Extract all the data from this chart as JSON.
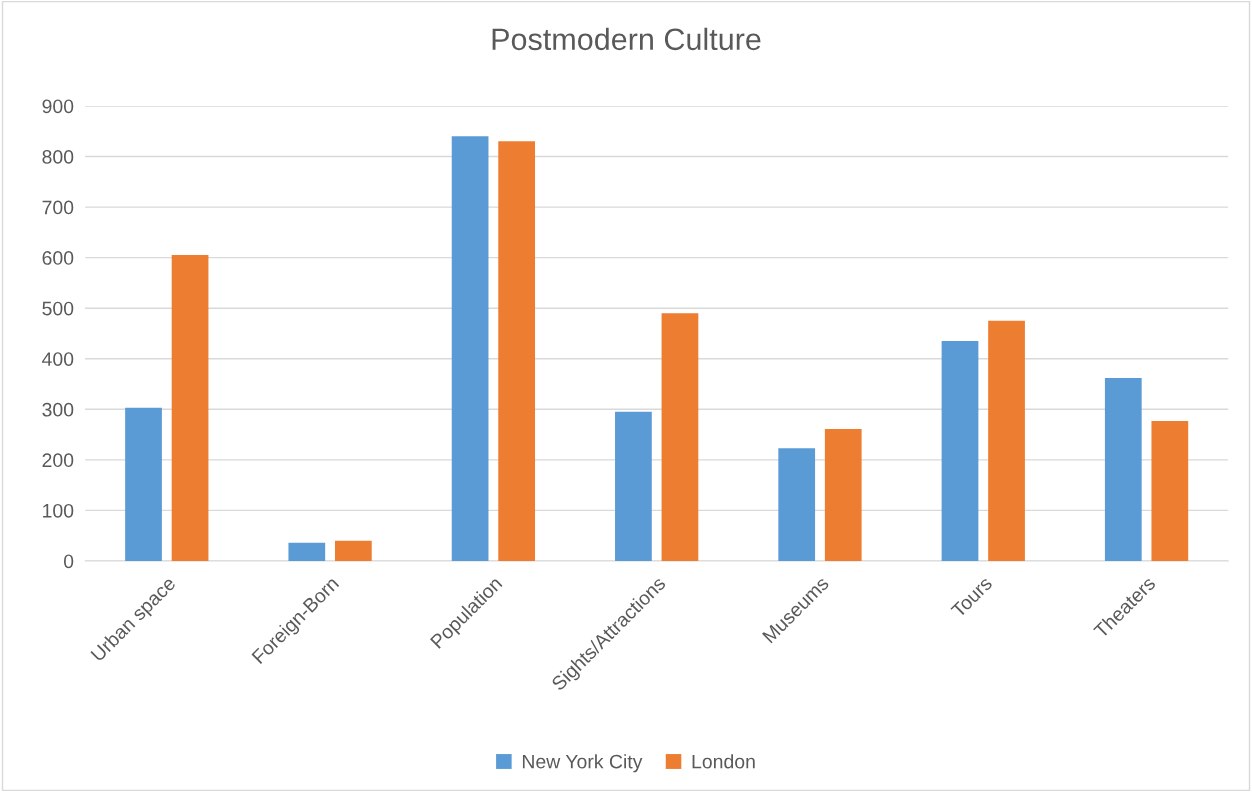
{
  "chart_data": {
    "type": "bar",
    "title": "Postmodern Culture",
    "categories": [
      "Urban space",
      "Foreign-Born",
      "Population",
      "Sights/Attractions",
      "Museums",
      "Tours",
      "Theaters"
    ],
    "series": [
      {
        "name": "New York City",
        "color": "#5b9bd5",
        "values": [
          303,
          36,
          840,
          295,
          223,
          435,
          362
        ]
      },
      {
        "name": "London",
        "color": "#ed7d31",
        "values": [
          605,
          40,
          830,
          490,
          261,
          475,
          277
        ]
      }
    ],
    "ylim": [
      0,
      900
    ],
    "yticks": [
      0,
      100,
      200,
      300,
      400,
      500,
      600,
      700,
      800,
      900
    ],
    "grid": "y",
    "legend": "bottom"
  }
}
